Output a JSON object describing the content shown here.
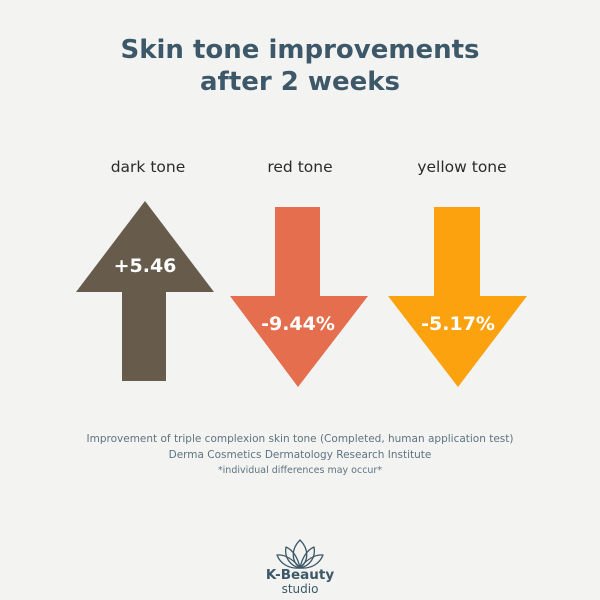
{
  "title": {
    "line1": "Skin tone improvements",
    "line2": "after 2 weeks"
  },
  "tones": [
    {
      "label": "dark tone",
      "value": "+5.46",
      "direction": "up",
      "color": "#675c4c"
    },
    {
      "label": "red tone",
      "value": "-9.44%",
      "direction": "down",
      "color": "#e46e4d"
    },
    {
      "label": "yellow tone",
      "value": "-5.17%",
      "direction": "down",
      "color": "#fca20e"
    }
  ],
  "footnote": {
    "line1": "Improvement of triple complexion skin tone (Completed, human application test)",
    "line2": "Derma Cosmetics Dermatology Research Institute",
    "line3": "*individual differences may occur*"
  },
  "logo": {
    "icon": "lotus-icon",
    "name": "K-Beauty",
    "sub": "studio"
  },
  "colors": {
    "title": "#3d5868",
    "footnote": "#5e7480",
    "background": "#f3f3f2"
  }
}
